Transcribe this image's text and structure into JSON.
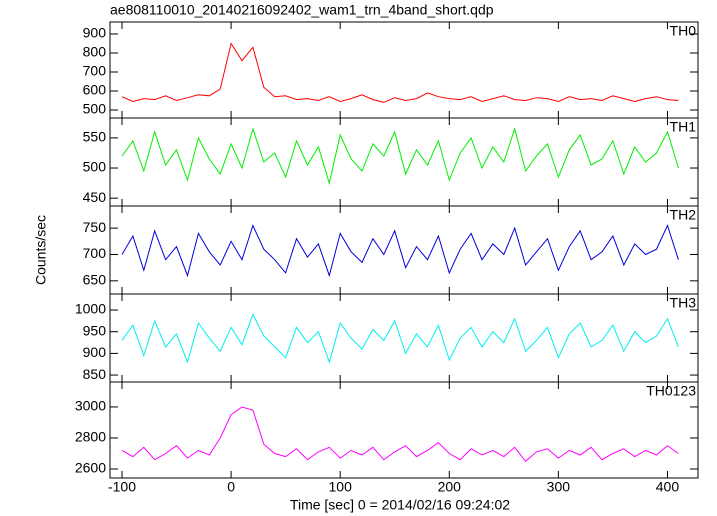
{
  "chart_data": [
    {
      "type": "line",
      "title": "ae808110010_20140216092402_wam1_trn_4band_short.qdp",
      "label": "TH0",
      "color": "#ff0000",
      "x": [
        -100,
        -90,
        -80,
        -70,
        -60,
        -50,
        -40,
        -30,
        -20,
        -10,
        0,
        10,
        20,
        30,
        40,
        50,
        60,
        70,
        80,
        90,
        100,
        110,
        120,
        130,
        140,
        150,
        160,
        170,
        180,
        190,
        200,
        210,
        220,
        230,
        240,
        250,
        260,
        270,
        280,
        290,
        300,
        310,
        320,
        330,
        340,
        350,
        360,
        370,
        380,
        390,
        400,
        410
      ],
      "values": [
        570,
        545,
        560,
        555,
        575,
        550,
        565,
        580,
        575,
        610,
        850,
        760,
        830,
        620,
        570,
        575,
        555,
        560,
        550,
        570,
        545,
        560,
        580,
        555,
        540,
        565,
        550,
        560,
        590,
        570,
        560,
        555,
        570,
        545,
        560,
        575,
        555,
        550,
        565,
        560,
        545,
        570,
        555,
        560,
        550,
        575,
        560,
        545,
        560,
        570,
        555,
        550
      ],
      "xlim": [
        -111,
        428
      ],
      "ylim": [
        458,
        963
      ],
      "yticks": [
        500,
        600,
        700,
        800,
        900
      ]
    },
    {
      "type": "line",
      "label": "TH1",
      "color": "#00ee00",
      "x": [
        -100,
        -90,
        -80,
        -70,
        -60,
        -50,
        -40,
        -30,
        -20,
        -10,
        0,
        10,
        20,
        30,
        40,
        50,
        60,
        70,
        80,
        90,
        100,
        110,
        120,
        130,
        140,
        150,
        160,
        170,
        180,
        190,
        200,
        210,
        220,
        230,
        240,
        250,
        260,
        270,
        280,
        290,
        300,
        310,
        320,
        330,
        340,
        350,
        360,
        370,
        380,
        390,
        400,
        410
      ],
      "values": [
        520,
        545,
        495,
        560,
        505,
        530,
        480,
        550,
        515,
        490,
        540,
        500,
        565,
        510,
        525,
        485,
        545,
        505,
        535,
        475,
        555,
        515,
        495,
        540,
        520,
        560,
        490,
        530,
        505,
        545,
        480,
        525,
        550,
        500,
        535,
        510,
        565,
        495,
        520,
        540,
        485,
        530,
        555,
        505,
        515,
        545,
        490,
        535,
        510,
        525,
        560,
        500
      ],
      "xlim": [
        -111,
        428
      ],
      "ylim": [
        437,
        583
      ],
      "yticks": [
        450,
        500,
        550
      ]
    },
    {
      "type": "line",
      "label": "TH2",
      "color": "#0000dd",
      "ylabel": "Counts/sec",
      "x": [
        -100,
        -90,
        -80,
        -70,
        -60,
        -50,
        -40,
        -30,
        -20,
        -10,
        0,
        10,
        20,
        30,
        40,
        50,
        60,
        70,
        80,
        90,
        100,
        110,
        120,
        130,
        140,
        150,
        160,
        170,
        180,
        190,
        200,
        210,
        220,
        230,
        240,
        250,
        260,
        270,
        280,
        290,
        300,
        310,
        320,
        330,
        340,
        350,
        360,
        370,
        380,
        390,
        400,
        410
      ],
      "values": [
        700,
        735,
        670,
        745,
        690,
        715,
        660,
        740,
        705,
        680,
        725,
        690,
        755,
        710,
        690,
        665,
        730,
        695,
        720,
        660,
        740,
        705,
        685,
        730,
        700,
        745,
        675,
        715,
        690,
        735,
        665,
        710,
        740,
        690,
        720,
        700,
        750,
        680,
        705,
        730,
        670,
        715,
        745,
        690,
        705,
        735,
        680,
        720,
        700,
        710,
        755,
        690
      ],
      "xlim": [
        -111,
        428
      ],
      "ylim": [
        625,
        792
      ],
      "yticks": [
        650,
        700,
        750
      ]
    },
    {
      "type": "line",
      "label": "TH3",
      "color": "#00eeee",
      "x": [
        -100,
        -90,
        -80,
        -70,
        -60,
        -50,
        -40,
        -30,
        -20,
        -10,
        0,
        10,
        20,
        30,
        40,
        50,
        60,
        70,
        80,
        90,
        100,
        110,
        120,
        130,
        140,
        150,
        160,
        170,
        180,
        190,
        200,
        210,
        220,
        230,
        240,
        250,
        260,
        270,
        280,
        290,
        300,
        310,
        320,
        330,
        340,
        350,
        360,
        370,
        380,
        390,
        400,
        410
      ],
      "values": [
        930,
        965,
        895,
        975,
        915,
        945,
        880,
        970,
        935,
        905,
        960,
        920,
        990,
        940,
        915,
        890,
        960,
        925,
        950,
        880,
        970,
        935,
        910,
        955,
        930,
        975,
        900,
        945,
        915,
        965,
        885,
        935,
        960,
        915,
        950,
        925,
        980,
        905,
        930,
        960,
        890,
        945,
        970,
        915,
        930,
        965,
        905,
        950,
        925,
        940,
        980,
        915
      ],
      "xlim": [
        -111,
        428
      ],
      "ylim": [
        834,
        1037
      ],
      "yticks": [
        850,
        900,
        950,
        1000
      ]
    },
    {
      "type": "line",
      "label": "TH0123",
      "color": "#ff00ff",
      "xlabel": "Time [sec] 0 = 2014/02/16 09:24:02",
      "x": [
        -100,
        -90,
        -80,
        -70,
        -60,
        -50,
        -40,
        -30,
        -20,
        -10,
        0,
        10,
        20,
        30,
        40,
        50,
        60,
        70,
        80,
        90,
        100,
        110,
        120,
        130,
        140,
        150,
        160,
        170,
        180,
        190,
        200,
        210,
        220,
        230,
        240,
        250,
        260,
        270,
        280,
        290,
        300,
        310,
        320,
        330,
        340,
        350,
        360,
        370,
        380,
        390,
        400,
        410
      ],
      "values": [
        2720,
        2680,
        2740,
        2660,
        2700,
        2750,
        2670,
        2720,
        2690,
        2800,
        2950,
        3000,
        2980,
        2760,
        2700,
        2680,
        2730,
        2660,
        2710,
        2740,
        2670,
        2720,
        2690,
        2740,
        2660,
        2710,
        2750,
        2680,
        2720,
        2770,
        2700,
        2660,
        2730,
        2690,
        2720,
        2680,
        2740,
        2650,
        2710,
        2730,
        2670,
        2720,
        2690,
        2740,
        2660,
        2700,
        2730,
        2680,
        2720,
        2690,
        2750,
        2700
      ],
      "xlim": [
        -111,
        428
      ],
      "ylim": [
        2542,
        3161
      ],
      "yticks": [
        2600,
        2800,
        3000
      ],
      "xticks": [
        -100,
        0,
        100,
        200,
        300,
        400
      ]
    }
  ]
}
